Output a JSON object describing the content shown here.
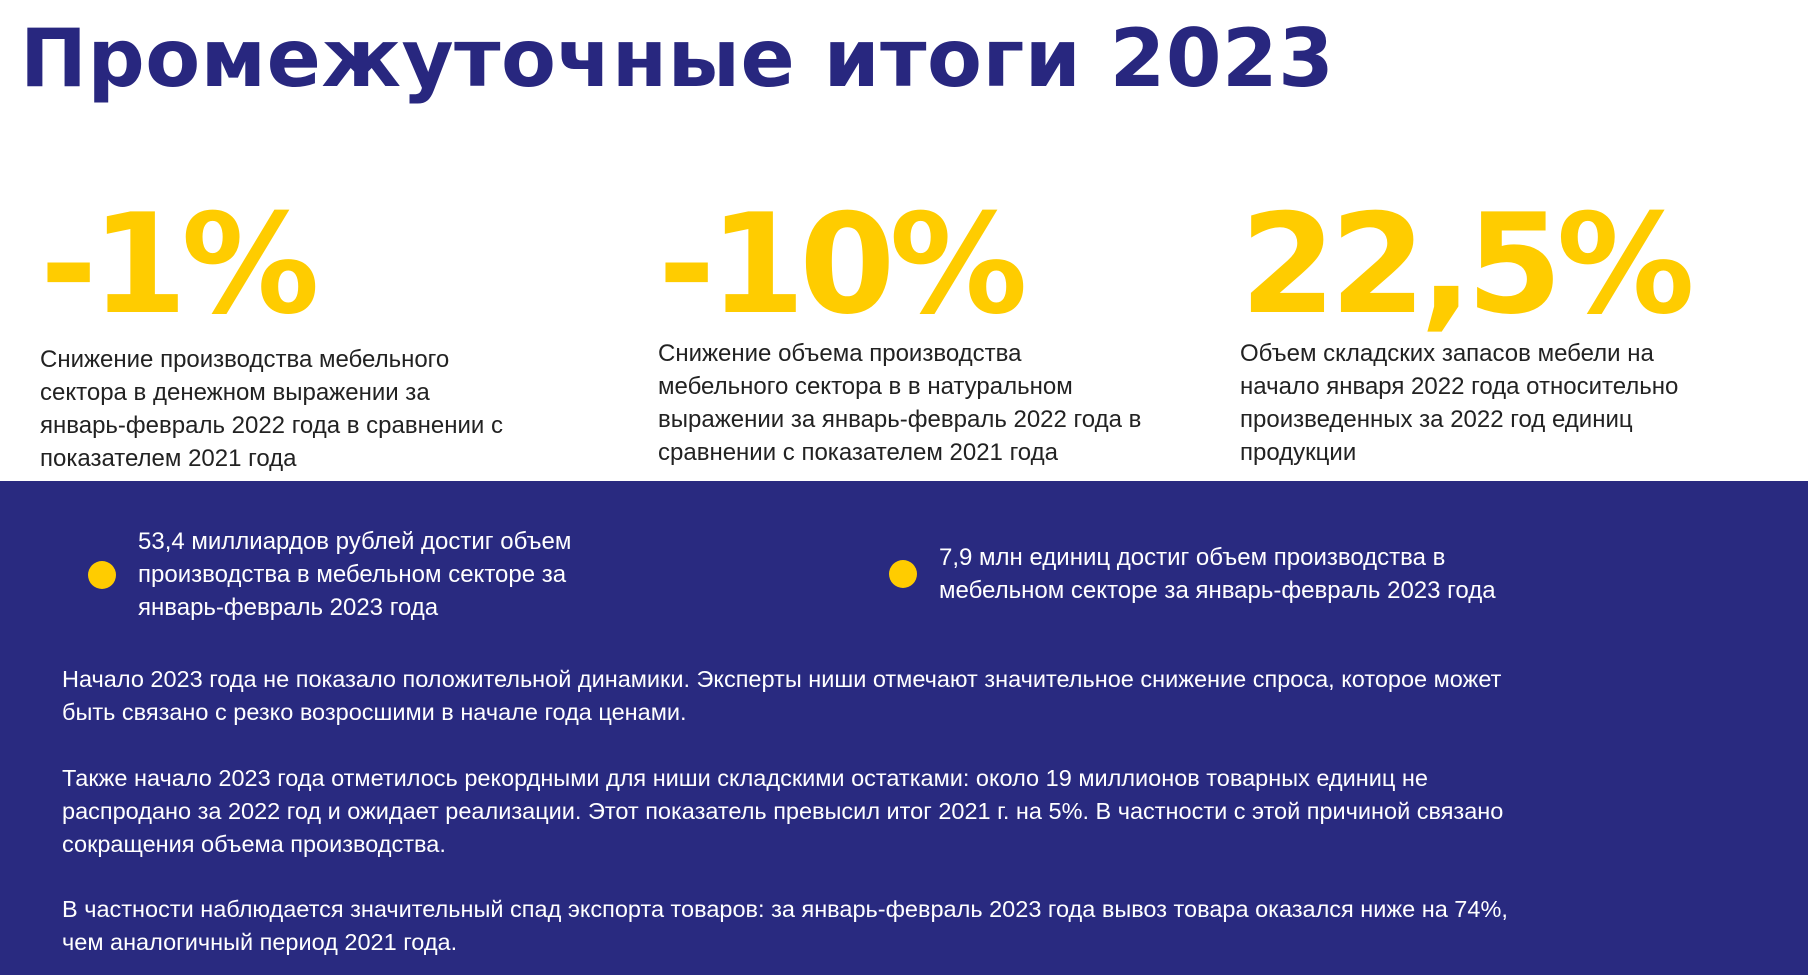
{
  "title": "Промежуточные итоги 2023",
  "stats": [
    {
      "value": "-1%",
      "description": [
        "Снижение производства мебельного",
        "сектора в денежном выражении за",
        "январь-февраль 2022 года в сравнении с",
        "показателем 2021 года"
      ]
    },
    {
      "value": "-10%",
      "description": [
        "Снижение объема производства",
        "мебельного сектора в в натуральном",
        "выражении за январь-февраль 2022 года в",
        "сравнении с показателем 2021 года"
      ]
    },
    {
      "value": "22,5%",
      "description": [
        "Объем складских запасов мебели на",
        "начало января 2022 года относительно",
        "произведенных за 2022 год единиц",
        "продукции"
      ]
    }
  ],
  "bullets": [
    {
      "lines": [
        "53,4 миллиардов рублей достиг объем",
        "производства в мебельном секторе за",
        "январь-февраль 2023 года"
      ]
    },
    {
      "lines": [
        "7,9 млн единиц достиг объем производства в",
        "мебельном секторе за январь-февраль 2023 года"
      ]
    }
  ],
  "paragraphs": [
    {
      "lines": [
        "Начало 2023 года не показало положительной динамики. Эксперты ниши отмечают значительное снижение спроса, которое может",
        "быть связано с резко возросшими в начале года ценами."
      ]
    },
    {
      "lines": [
        "Также начало 2023 года отметилось рекордными для ниши складскими остатками: около 19 миллионов товарных единиц не",
        "распродано за 2022 год и ожидает реализации. Этот показатель превысил итог 2021 г. на 5%. В частности с этой причиной связано",
        "сокращения объема производства."
      ]
    },
    {
      "lines": [
        "В частности наблюдается значительный спад экспорта товаров: за январь-февраль 2023 года вывоз товара оказался ниже на 74%,",
        "чем аналогичный период 2021 года."
      ]
    }
  ],
  "colors": {
    "title": "#28277f",
    "accent": "#ffcc00",
    "band": "#292a80"
  }
}
